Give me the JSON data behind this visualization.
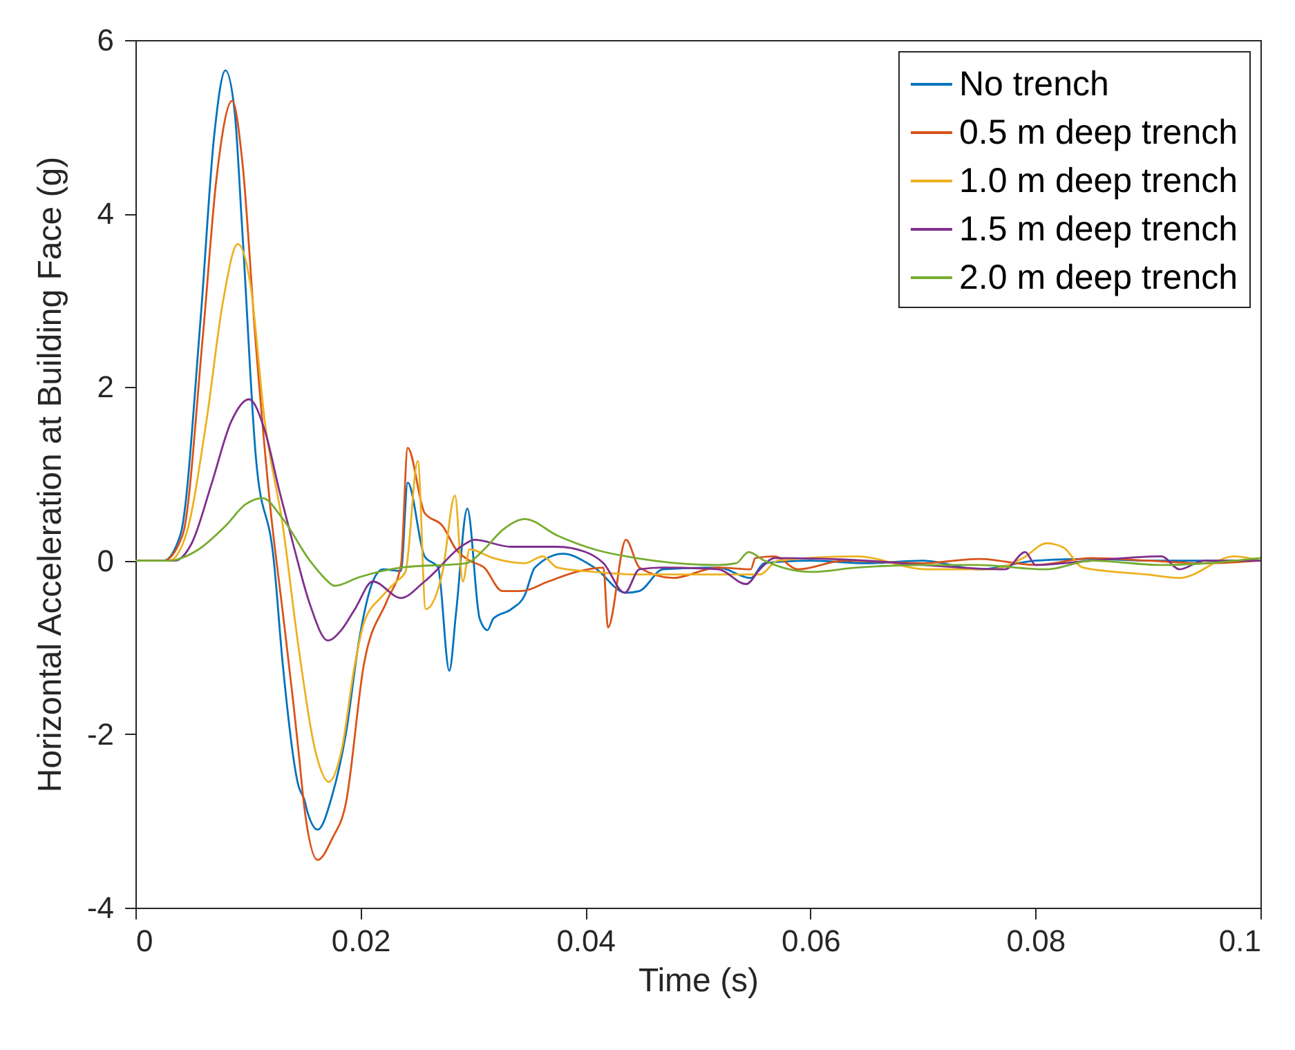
{
  "chart_data": {
    "type": "line",
    "xlabel": "Time (s)",
    "ylabel": "Horizontal Acceleration at Building Face (g)",
    "xlim": [
      0,
      0.1
    ],
    "xticks": [
      0,
      0.02,
      0.04,
      0.06,
      0.08,
      0.1
    ],
    "ylim": [
      -4,
      6
    ],
    "yticks": [
      -4,
      -2,
      0,
      2,
      4,
      6
    ],
    "grid": false,
    "legend": "top right",
    "line_style": "solid",
    "series": [
      {
        "name": "No trench",
        "color": "#0072bd",
        "x": [
          0,
          0.0025,
          0.004,
          0.0058,
          0.007,
          0.008,
          0.0088,
          0.0095,
          0.0107,
          0.0123,
          0.0131,
          0.0145,
          0.015,
          0.0153,
          0.0162,
          0.0175,
          0.0187,
          0.0199,
          0.0211,
          0.022,
          0.0236,
          0.0242,
          0.0257,
          0.0269,
          0.0279,
          0.0285,
          0.0295,
          0.0306,
          0.0313,
          0.0318,
          0.0334,
          0.0346,
          0.0355,
          0.038,
          0.0408,
          0.0436,
          0.0448,
          0.0469,
          0.0518,
          0.0547,
          0.0559,
          0.06,
          0.065,
          0.07,
          0.075,
          0.08,
          0.085,
          0.09,
          0.095,
          0.1
        ],
        "values": [
          0,
          0,
          0.3,
          2.8,
          4.9,
          5.65,
          5.2,
          3.8,
          1.2,
          0,
          -1.2,
          -2.6,
          -2.75,
          -2.9,
          -3.1,
          -2.7,
          -2.0,
          -0.9,
          -0.24,
          -0.1,
          -0.12,
          0.9,
          0.05,
          -0.08,
          -1.27,
          -0.6,
          0.6,
          -0.67,
          -0.8,
          -0.67,
          -0.56,
          -0.4,
          -0.08,
          0.08,
          -0.08,
          -0.37,
          -0.35,
          -0.1,
          -0.08,
          -0.2,
          -0.03,
          0,
          -0.03,
          0,
          -0.1,
          0,
          0.02,
          0,
          0,
          0
        ]
      },
      {
        "name": "0.5 m deep trench",
        "color": "#d95319",
        "x": [
          0,
          0.0025,
          0.0042,
          0.006,
          0.0072,
          0.0086,
          0.0095,
          0.0107,
          0.012,
          0.0131,
          0.014,
          0.0145,
          0.015,
          0.0162,
          0.0175,
          0.0187,
          0.0203,
          0.0224,
          0.0236,
          0.0242,
          0.0257,
          0.0273,
          0.0285,
          0.0297,
          0.031,
          0.0326,
          0.0343,
          0.0367,
          0.0392,
          0.0416,
          0.042,
          0.0436,
          0.0448,
          0.0478,
          0.0518,
          0.0547,
          0.0551,
          0.0568,
          0.0589,
          0.063,
          0.07,
          0.075,
          0.08,
          0.085,
          0.09,
          0.095,
          0.1
        ],
        "values": [
          0,
          0,
          0.3,
          2.6,
          4.4,
          5.3,
          4.6,
          2.5,
          0.6,
          -0.6,
          -1.6,
          -2.2,
          -2.83,
          -3.45,
          -3.2,
          -2.8,
          -1.2,
          -0.45,
          -0.05,
          1.3,
          0.55,
          0.4,
          0.13,
          0,
          -0.08,
          -0.35,
          -0.35,
          -0.24,
          -0.13,
          -0.08,
          -0.77,
          0.24,
          -0.08,
          -0.2,
          -0.08,
          -0.1,
          0.03,
          0.05,
          -0.1,
          0,
          -0.03,
          0.02,
          -0.05,
          0.03,
          0,
          -0.03,
          0
        ]
      },
      {
        "name": "1.0 m deep trench",
        "color": "#edb120",
        "x": [
          0,
          0.003,
          0.0045,
          0.0063,
          0.0078,
          0.0091,
          0.0102,
          0.0115,
          0.0131,
          0.0145,
          0.016,
          0.0172,
          0.0183,
          0.0195,
          0.0203,
          0.022,
          0.0232,
          0.024,
          0.0251,
          0.0258,
          0.0273,
          0.0284,
          0.0291,
          0.0297,
          0.0318,
          0.0346,
          0.0362,
          0.0375,
          0.0408,
          0.0445,
          0.05,
          0.0555,
          0.0571,
          0.0641,
          0.0703,
          0.076,
          0.0789,
          0.081,
          0.0825,
          0.0842,
          0.0899,
          0.0928,
          0.0977,
          0.1
        ],
        "values": [
          0,
          0,
          0.3,
          1.6,
          3.0,
          3.65,
          3.2,
          1.6,
          0.4,
          -1.0,
          -2.2,
          -2.55,
          -2.2,
          -1.2,
          -0.72,
          -0.4,
          -0.24,
          -0.13,
          1.15,
          -0.56,
          -0.13,
          0.75,
          -0.24,
          0.13,
          0.03,
          -0.03,
          0.05,
          -0.08,
          -0.13,
          -0.16,
          -0.16,
          -0.16,
          0,
          0.05,
          -0.1,
          -0.1,
          0.03,
          0.2,
          0.15,
          -0.08,
          -0.16,
          -0.2,
          0.05,
          0
        ]
      },
      {
        "name": "1.5 m deep trench",
        "color": "#7e2f8e",
        "x": [
          0,
          0.0035,
          0.005,
          0.0068,
          0.0085,
          0.0101,
          0.0115,
          0.0128,
          0.014,
          0.0155,
          0.0171,
          0.0183,
          0.0195,
          0.0211,
          0.0236,
          0.0257,
          0.0294,
          0.0301,
          0.0334,
          0.0375,
          0.04,
          0.0416,
          0.0435,
          0.0448,
          0.0469,
          0.0518,
          0.0543,
          0.0555,
          0.0568,
          0.065,
          0.07,
          0.0773,
          0.0791,
          0.08,
          0.085,
          0.0912,
          0.0928,
          0.095,
          0.1
        ],
        "values": [
          0,
          0,
          0.2,
          0.9,
          1.6,
          1.86,
          1.5,
          0.8,
          0.2,
          -0.5,
          -0.92,
          -0.8,
          -0.56,
          -0.24,
          -0.43,
          -0.24,
          0.2,
          0.24,
          0.16,
          0.16,
          0.1,
          -0.03,
          -0.37,
          -0.1,
          -0.08,
          -0.1,
          -0.27,
          -0.1,
          0.03,
          0,
          -0.05,
          -0.1,
          0.1,
          -0.05,
          0,
          0.05,
          -0.1,
          0,
          0
        ]
      },
      {
        "name": "2.0 m deep trench",
        "color": "#77ac30",
        "x": [
          0,
          0.003,
          0.0055,
          0.008,
          0.0098,
          0.0113,
          0.013,
          0.0155,
          0.0168,
          0.0177,
          0.0199,
          0.0236,
          0.0294,
          0.031,
          0.0326,
          0.0346,
          0.0375,
          0.0408,
          0.0445,
          0.0518,
          0.0534,
          0.0545,
          0.0559,
          0.0601,
          0.0641,
          0.0703,
          0.0748,
          0.081,
          0.085,
          0.0912,
          0.1
        ],
        "values": [
          0,
          0,
          0.12,
          0.4,
          0.65,
          0.72,
          0.5,
          0,
          -0.2,
          -0.29,
          -0.19,
          -0.08,
          -0.03,
          0.13,
          0.35,
          0.48,
          0.29,
          0.13,
          0.03,
          -0.05,
          -0.03,
          0.1,
          0,
          -0.13,
          -0.08,
          -0.05,
          -0.05,
          -0.1,
          0,
          -0.05,
          0.03
        ]
      }
    ]
  }
}
